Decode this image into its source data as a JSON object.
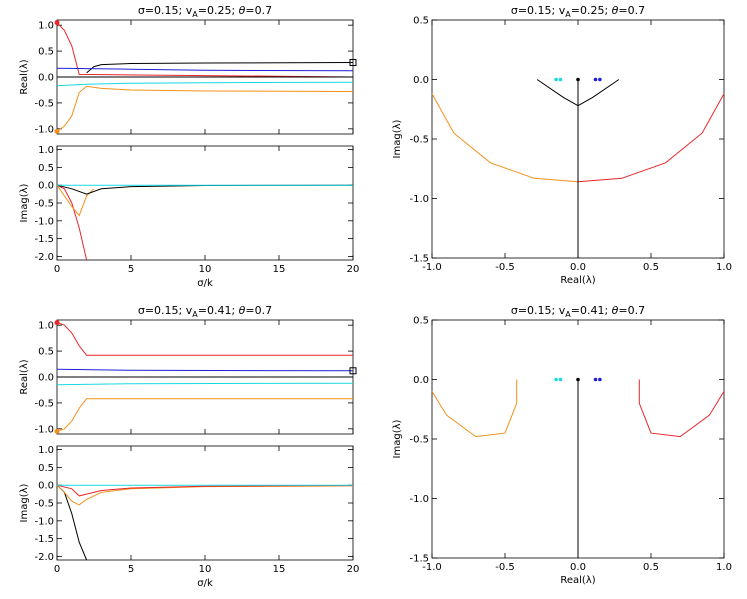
{
  "colors": {
    "red": "#e8262a",
    "orange": "#f39019",
    "black": "#000000",
    "blue": "#1f1fd6",
    "cyan": "#18d8e0"
  },
  "chart_data": [
    {
      "type": "line",
      "title": "σ=0.15; vA=0.25; θ=0.7",
      "title_parts": {
        "sigma": "σ=0.15; v",
        "sub": "A",
        "mid": "=0.25; ",
        "theta": "θ",
        "end": "=0.7"
      },
      "xlabel": "σ/k",
      "panels": [
        {
          "ylabel": "Real(λ)",
          "xlim": [
            0,
            20
          ],
          "ylim": [
            -1.1,
            1.1
          ],
          "yticks": [
            "1.0",
            "0.5",
            "0.0",
            "-0.5",
            "-1.0"
          ],
          "ytick_vals": [
            1,
            0.5,
            0,
            -0.5,
            -1
          ],
          "xticks": [
            "0",
            "5",
            "10",
            "15",
            "20"
          ],
          "xtick_vals": [
            0,
            5,
            10,
            15,
            20
          ],
          "series": [
            {
              "name": "red",
              "color": "red",
              "x": [
                0,
                0.5,
                1,
                1.5,
                20
              ],
              "y": [
                1.05,
                0.9,
                0.6,
                0.05,
                0.0
              ]
            },
            {
              "name": "orange",
              "color": "orange",
              "x": [
                0,
                0.5,
                1,
                1.5,
                2,
                3,
                5,
                10,
                20
              ],
              "y": [
                -1.05,
                -0.95,
                -0.75,
                -0.3,
                -0.18,
                -0.22,
                -0.25,
                -0.27,
                -0.28
              ]
            },
            {
              "name": "black",
              "color": "black",
              "x": [
                2,
                2.5,
                3,
                5,
                10,
                20
              ],
              "y": [
                0.08,
                0.2,
                0.24,
                0.26,
                0.27,
                0.28
              ]
            },
            {
              "name": "blue",
              "color": "blue",
              "x": [
                0,
                5,
                10,
                20
              ],
              "y": [
                0.17,
                0.15,
                0.13,
                0.12
              ]
            },
            {
              "name": "cyan",
              "color": "cyan",
              "x": [
                0,
                2,
                5,
                10,
                20
              ],
              "y": [
                -0.17,
                -0.14,
                -0.12,
                -0.11,
                -0.1
              ]
            },
            {
              "name": "zero-black",
              "color": "black",
              "x": [
                0,
                20
              ],
              "y": [
                0.0,
                0.0
              ]
            }
          ]
        },
        {
          "ylabel": "Imag(λ)",
          "xlim": [
            0,
            20
          ],
          "ylim": [
            -2.1,
            1.1
          ],
          "yticks": [
            "1.0",
            "0.5",
            "0.0",
            "-0.5",
            "-1.0",
            "-1.5",
            "-2.0"
          ],
          "ytick_vals": [
            1,
            0.5,
            0,
            -0.5,
            -1,
            -1.5,
            -2
          ],
          "series": [
            {
              "name": "red",
              "color": "red",
              "x": [
                0,
                0.5,
                1,
                1.5,
                2
              ],
              "y": [
                0,
                -0.1,
                -0.5,
                -1.2,
                -2.1
              ]
            },
            {
              "name": "orange",
              "color": "orange",
              "x": [
                0,
                0.5,
                1,
                1.5,
                2,
                2.5
              ],
              "y": [
                0,
                -0.3,
                -0.6,
                -0.85,
                -0.3,
                -0.1
              ]
            },
            {
              "name": "black",
              "color": "black",
              "x": [
                0,
                1,
                2,
                3,
                5,
                10,
                20
              ],
              "y": [
                0,
                -0.1,
                -0.25,
                -0.1,
                -0.04,
                -0.01,
                0
              ]
            },
            {
              "name": "cyan",
              "color": "cyan",
              "x": [
                0,
                5,
                20
              ],
              "y": [
                0,
                0,
                0
              ]
            }
          ]
        }
      ]
    },
    {
      "type": "scatter",
      "title": "σ=0.15; vA=0.25; θ=0.7",
      "title_parts": {
        "sigma": "σ=0.15; v",
        "sub": "A",
        "mid": "=0.25; ",
        "theta": "θ",
        "end": "=0.7"
      },
      "xlabel": "Real(λ)",
      "ylabel": "Imag(λ)",
      "xlim": [
        -1.0,
        1.0
      ],
      "ylim": [
        -1.5,
        0.5
      ],
      "xticks": [
        "-1.0",
        "-0.5",
        "0.0",
        "0.5",
        "1.0"
      ],
      "xtick_vals": [
        -1,
        -0.5,
        0,
        0.5,
        1
      ],
      "yticks": [
        "0.5",
        "0.0",
        "-0.5",
        "-1.0",
        "-1.5"
      ],
      "ytick_vals": [
        0.5,
        0,
        -0.5,
        -1,
        -1.5
      ],
      "series": [
        {
          "name": "orange",
          "color": "orange",
          "x": [
            -1.0,
            -0.85,
            -0.6,
            -0.3,
            0.0
          ],
          "y": [
            -0.12,
            -0.45,
            -0.7,
            -0.83,
            -0.86
          ]
        },
        {
          "name": "red",
          "color": "red",
          "x": [
            0.0,
            0.3,
            0.6,
            0.85,
            1.0
          ],
          "y": [
            -0.86,
            -0.83,
            -0.7,
            -0.45,
            -0.12
          ]
        },
        {
          "name": "black",
          "color": "black",
          "x": [
            -0.28,
            -0.1,
            0.0,
            0.1,
            0.28
          ],
          "y": [
            0,
            -0.15,
            -0.22,
            -0.15,
            0
          ]
        },
        {
          "name": "vertical",
          "color": "black",
          "x": [
            0,
            0
          ],
          "y": [
            0,
            -1.5
          ]
        }
      ]
    },
    {
      "type": "line",
      "title": "σ=0.15; vA=0.41; θ=0.7",
      "title_parts": {
        "sigma": "σ=0.15; v",
        "sub": "A",
        "mid": "=0.41; ",
        "theta": "θ",
        "end": "=0.7"
      },
      "xlabel": "σ/k",
      "panels": [
        {
          "ylabel": "Real(λ)",
          "xlim": [
            0,
            20
          ],
          "ylim": [
            -1.1,
            1.1
          ],
          "yticks": [
            "1.0",
            "0.5",
            "0.0",
            "-0.5",
            "-1.0"
          ],
          "ytick_vals": [
            1,
            0.5,
            0,
            -0.5,
            -1
          ],
          "xticks": [
            "0",
            "5",
            "10",
            "15",
            "20"
          ],
          "xtick_vals": [
            0,
            5,
            10,
            15,
            20
          ],
          "series": [
            {
              "name": "red",
              "color": "red",
              "x": [
                0,
                0.5,
                1,
                1.5,
                2,
                5,
                20
              ],
              "y": [
                1.05,
                1.0,
                0.85,
                0.6,
                0.42,
                0.42,
                0.42
              ]
            },
            {
              "name": "orange",
              "color": "orange",
              "x": [
                0,
                0.5,
                1,
                1.5,
                2,
                5,
                20
              ],
              "y": [
                -1.05,
                -1.0,
                -0.85,
                -0.6,
                -0.42,
                -0.42,
                -0.42
              ]
            },
            {
              "name": "blue",
              "color": "blue",
              "x": [
                0,
                5,
                20
              ],
              "y": [
                0.15,
                0.13,
                0.12
              ]
            },
            {
              "name": "cyan",
              "color": "cyan",
              "x": [
                0,
                5,
                20
              ],
              "y": [
                -0.15,
                -0.13,
                -0.12
              ]
            },
            {
              "name": "black",
              "color": "black",
              "x": [
                0,
                20
              ],
              "y": [
                0.0,
                0.0
              ]
            }
          ]
        },
        {
          "ylabel": "Imag(λ)",
          "xlim": [
            0,
            20
          ],
          "ylim": [
            -2.1,
            1.1
          ],
          "yticks": [
            "1.0",
            "0.5",
            "0.0",
            "-0.5",
            "-1.0",
            "-1.5",
            "-2.0"
          ],
          "ytick_vals": [
            1,
            0.5,
            0,
            -0.5,
            -1,
            -1.5,
            -2
          ],
          "series": [
            {
              "name": "black",
              "color": "black",
              "x": [
                0,
                0.5,
                1,
                1.5,
                2
              ],
              "y": [
                0,
                -0.2,
                -0.8,
                -1.6,
                -2.1
              ]
            },
            {
              "name": "orange",
              "color": "orange",
              "x": [
                0,
                0.5,
                1,
                1.5,
                2,
                3,
                5,
                10,
                20
              ],
              "y": [
                0,
                -0.2,
                -0.45,
                -0.55,
                -0.4,
                -0.2,
                -0.1,
                -0.04,
                -0.02
              ]
            },
            {
              "name": "red",
              "color": "red",
              "x": [
                0,
                1,
                1.5,
                2,
                3,
                5,
                10,
                20
              ],
              "y": [
                0,
                -0.1,
                -0.3,
                -0.25,
                -0.15,
                -0.08,
                -0.03,
                -0.01
              ]
            },
            {
              "name": "cyan",
              "color": "cyan",
              "x": [
                0,
                5,
                20
              ],
              "y": [
                0,
                0,
                0
              ]
            }
          ]
        }
      ]
    },
    {
      "type": "scatter",
      "title": "σ=0.15; vA=0.41; θ=0.7",
      "title_parts": {
        "sigma": "σ=0.15; v",
        "sub": "A",
        "mid": "=0.41; ",
        "theta": "θ",
        "end": "=0.7"
      },
      "xlabel": "Real(λ)",
      "ylabel": "Imag(λ)",
      "xlim": [
        -1.0,
        1.0
      ],
      "ylim": [
        -1.5,
        0.5
      ],
      "xticks": [
        "-1.0",
        "-0.5",
        "0.0",
        "0.5",
        "1.0"
      ],
      "xtick_vals": [
        -1,
        -0.5,
        0,
        0.5,
        1
      ],
      "yticks": [
        "0.5",
        "0.0",
        "-0.5",
        "-1.0",
        "-1.5"
      ],
      "ytick_vals": [
        0.5,
        0,
        -0.5,
        -1,
        -1.5
      ],
      "series": [
        {
          "name": "orange",
          "color": "orange",
          "x": [
            -1.0,
            -0.9,
            -0.7,
            -0.5,
            -0.42,
            -0.42
          ],
          "y": [
            -0.1,
            -0.3,
            -0.48,
            -0.45,
            -0.2,
            0
          ]
        },
        {
          "name": "red",
          "color": "red",
          "x": [
            0.42,
            0.42,
            0.5,
            0.7,
            0.9,
            1.0
          ],
          "y": [
            0,
            -0.2,
            -0.45,
            -0.48,
            -0.3,
            -0.1
          ]
        },
        {
          "name": "vertical",
          "color": "black",
          "x": [
            0,
            0
          ],
          "y": [
            0,
            -1.5
          ]
        }
      ]
    }
  ]
}
